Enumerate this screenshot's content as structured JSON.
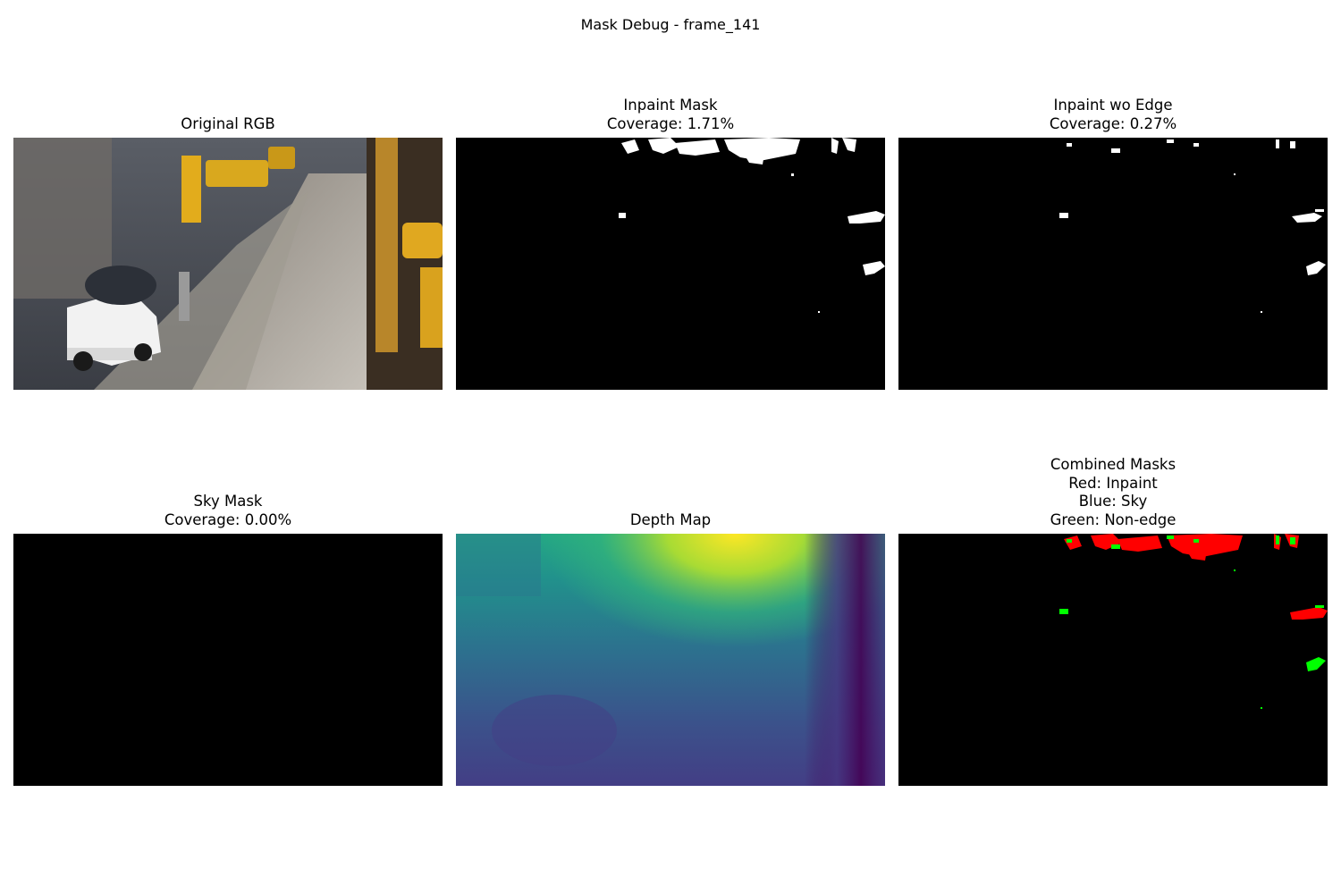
{
  "figure": {
    "title": "Mask Debug - frame_141"
  },
  "panels": [
    {
      "title": "Original RGB",
      "kind": "photo"
    },
    {
      "title": "Inpaint Mask\nCoverage: 1.71%",
      "kind": "mask",
      "coverage_percent": 1.71
    },
    {
      "title": "Inpaint wo Edge\nCoverage: 0.27%",
      "kind": "mask",
      "coverage_percent": 0.27
    },
    {
      "title": "Sky Mask\nCoverage: 0.00%",
      "kind": "mask",
      "coverage_percent": 0.0
    },
    {
      "title": "Depth Map",
      "kind": "depth",
      "colormap": "viridis"
    },
    {
      "title": "Combined Masks\nRed: Inpaint\nBlue: Sky\nGreen: Non-edge",
      "kind": "overlay",
      "legend_colors": {
        "inpaint": "#ff0000",
        "sky": "#0000ff",
        "non_edge": "#00ff00"
      }
    }
  ]
}
